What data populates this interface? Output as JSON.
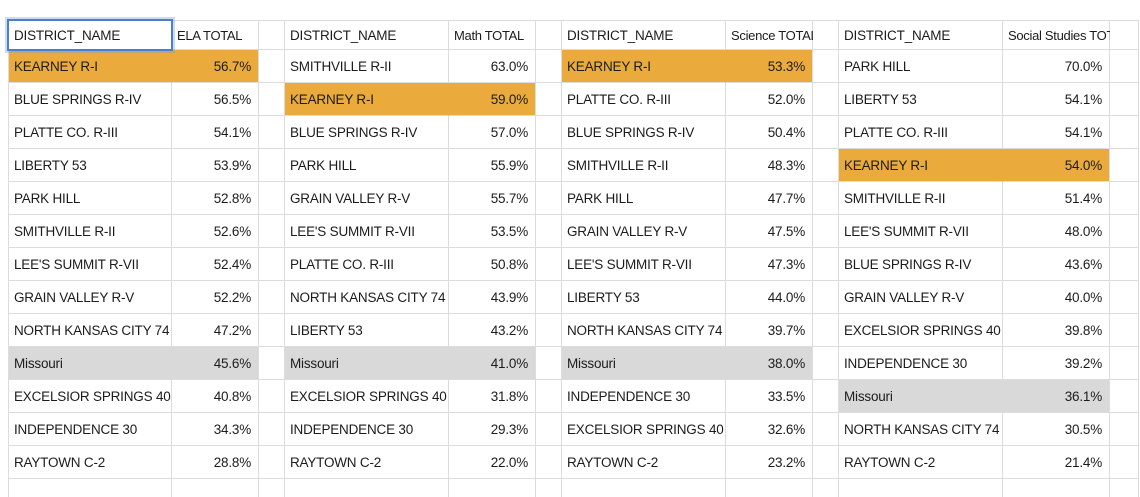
{
  "sheet": {
    "colors": {
      "highlight_orange": "#EAAB3C",
      "highlight_gray": "#D9D9D9",
      "selection_blue": "#4A7FCB",
      "gridline": "#DCDCDC"
    },
    "selection": {
      "table_index": 0,
      "target": "name_header"
    },
    "tables": [
      {
        "name_header": "DISTRICT_NAME",
        "value_header": "ELA TOTAL",
        "rows": [
          {
            "district": "KEARNEY R-I",
            "value": "56.7%",
            "highlight": "orange"
          },
          {
            "district": "BLUE SPRINGS R-IV",
            "value": "56.5%",
            "highlight": null
          },
          {
            "district": "PLATTE CO. R-III",
            "value": "54.1%",
            "highlight": null
          },
          {
            "district": "LIBERTY 53",
            "value": "53.9%",
            "highlight": null
          },
          {
            "district": "PARK HILL",
            "value": "52.8%",
            "highlight": null
          },
          {
            "district": "SMITHVILLE R-II",
            "value": "52.6%",
            "highlight": null
          },
          {
            "district": "LEE'S SUMMIT R-VII",
            "value": "52.4%",
            "highlight": null
          },
          {
            "district": "GRAIN VALLEY R-V",
            "value": "52.2%",
            "highlight": null
          },
          {
            "district": "NORTH KANSAS CITY 74",
            "value": "47.2%",
            "highlight": null
          },
          {
            "district": "Missouri",
            "value": "45.6%",
            "highlight": "gray"
          },
          {
            "district": "EXCELSIOR SPRINGS 40",
            "value": "40.8%",
            "highlight": null
          },
          {
            "district": "INDEPENDENCE 30",
            "value": "34.3%",
            "highlight": null
          },
          {
            "district": "RAYTOWN C-2",
            "value": "28.8%",
            "highlight": null
          }
        ]
      },
      {
        "name_header": "DISTRICT_NAME",
        "value_header": "Math TOTAL",
        "rows": [
          {
            "district": "SMITHVILLE R-II",
            "value": "63.0%",
            "highlight": null
          },
          {
            "district": "KEARNEY R-I",
            "value": "59.0%",
            "highlight": "orange"
          },
          {
            "district": "BLUE SPRINGS R-IV",
            "value": "57.0%",
            "highlight": null
          },
          {
            "district": "PARK HILL",
            "value": "55.9%",
            "highlight": null
          },
          {
            "district": "GRAIN VALLEY R-V",
            "value": "55.7%",
            "highlight": null
          },
          {
            "district": "LEE'S SUMMIT R-VII",
            "value": "53.5%",
            "highlight": null
          },
          {
            "district": "PLATTE CO. R-III",
            "value": "50.8%",
            "highlight": null
          },
          {
            "district": "NORTH KANSAS CITY 74",
            "value": "43.9%",
            "highlight": null
          },
          {
            "district": "LIBERTY 53",
            "value": "43.2%",
            "highlight": null
          },
          {
            "district": "Missouri",
            "value": "41.0%",
            "highlight": "gray"
          },
          {
            "district": "EXCELSIOR SPRINGS 40",
            "value": "31.8%",
            "highlight": null
          },
          {
            "district": "INDEPENDENCE 30",
            "value": "29.3%",
            "highlight": null
          },
          {
            "district": "RAYTOWN C-2",
            "value": "22.0%",
            "highlight": null
          }
        ]
      },
      {
        "name_header": "DISTRICT_NAME",
        "value_header": "Science TOTAL",
        "rows": [
          {
            "district": "KEARNEY R-I",
            "value": "53.3%",
            "highlight": "orange"
          },
          {
            "district": "PLATTE CO. R-III",
            "value": "52.0%",
            "highlight": null
          },
          {
            "district": "BLUE SPRINGS R-IV",
            "value": "50.4%",
            "highlight": null
          },
          {
            "district": "SMITHVILLE R-II",
            "value": "48.3%",
            "highlight": null
          },
          {
            "district": "PARK HILL",
            "value": "47.7%",
            "highlight": null
          },
          {
            "district": "GRAIN VALLEY R-V",
            "value": "47.5%",
            "highlight": null
          },
          {
            "district": "LEE'S SUMMIT R-VII",
            "value": "47.3%",
            "highlight": null
          },
          {
            "district": "LIBERTY 53",
            "value": "44.0%",
            "highlight": null
          },
          {
            "district": "NORTH KANSAS CITY 74",
            "value": "39.7%",
            "highlight": null
          },
          {
            "district": "Missouri",
            "value": "38.0%",
            "highlight": "gray"
          },
          {
            "district": "INDEPENDENCE 30",
            "value": "33.5%",
            "highlight": null
          },
          {
            "district": "EXCELSIOR SPRINGS 40",
            "value": "32.6%",
            "highlight": null
          },
          {
            "district": "RAYTOWN C-2",
            "value": "23.2%",
            "highlight": null
          }
        ]
      },
      {
        "name_header": "DISTRICT_NAME",
        "value_header": "Social Studies TOTAL",
        "rows": [
          {
            "district": "PARK HILL",
            "value": "70.0%",
            "highlight": null
          },
          {
            "district": "LIBERTY 53",
            "value": "54.1%",
            "highlight": null
          },
          {
            "district": "PLATTE CO. R-III",
            "value": "54.1%",
            "highlight": null
          },
          {
            "district": "KEARNEY R-I",
            "value": "54.0%",
            "highlight": "orange"
          },
          {
            "district": "SMITHVILLE R-II",
            "value": "51.4%",
            "highlight": null
          },
          {
            "district": "LEE'S SUMMIT R-VII",
            "value": "48.0%",
            "highlight": null
          },
          {
            "district": "BLUE SPRINGS R-IV",
            "value": "43.6%",
            "highlight": null
          },
          {
            "district": "GRAIN VALLEY R-V",
            "value": "40.0%",
            "highlight": null
          },
          {
            "district": "EXCELSIOR SPRINGS 40",
            "value": "39.8%",
            "highlight": null
          },
          {
            "district": "INDEPENDENCE 30",
            "value": "39.2%",
            "highlight": null
          },
          {
            "district": "Missouri",
            "value": "36.1%",
            "highlight": "gray"
          },
          {
            "district": "NORTH KANSAS CITY 74",
            "value": "30.5%",
            "highlight": null
          },
          {
            "district": "RAYTOWN C-2",
            "value": "21.4%",
            "highlight": null
          }
        ]
      }
    ]
  }
}
